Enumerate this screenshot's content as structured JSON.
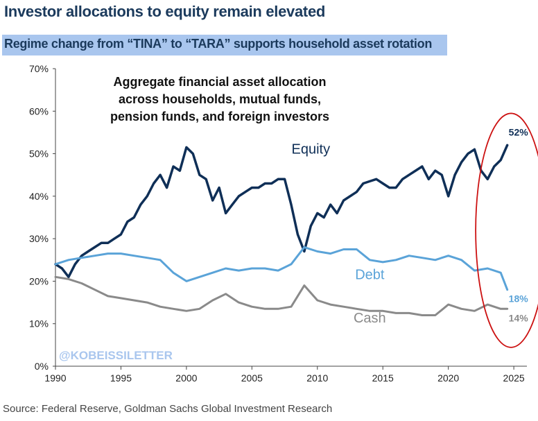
{
  "header": {
    "title": "Investor allocations to equity remain elevated",
    "subtitle": "Regime change from “TINA” to “TARA” supports household asset rotation"
  },
  "source": "Source: Federal Reserve, Goldman Sachs Global Investment Research",
  "chart_data": {
    "type": "line",
    "title": "Aggregate financial asset allocation across households, mutual funds, pension funds, and foreign investors",
    "title_lines": [
      "Aggregate financial asset allocation",
      "across households, mutual funds,",
      "pension funds, and foreign investors"
    ],
    "watermark": "@KOBEISSILETTER",
    "xlim": [
      1990,
      2026
    ],
    "ylim": [
      0,
      70
    ],
    "x_ticks": [
      1990,
      1995,
      2000,
      2005,
      2010,
      2015,
      2020,
      2025
    ],
    "x_tick_labels": [
      "1990",
      "1995",
      "2000",
      "2005",
      "2010",
      "2015",
      "2020",
      "2025"
    ],
    "y_ticks": [
      0,
      10,
      20,
      30,
      40,
      50,
      60,
      70
    ],
    "y_tick_labels": [
      "0%",
      "10%",
      "20%",
      "30%",
      "40%",
      "50%",
      "60%",
      "70%"
    ],
    "series": [
      {
        "name": "Equity",
        "color": "#0f2f57",
        "end_label": "52%",
        "points": [
          [
            1990,
            24
          ],
          [
            1990.5,
            23
          ],
          [
            1991,
            21
          ],
          [
            1991.5,
            24
          ],
          [
            1992,
            26
          ],
          [
            1992.5,
            27
          ],
          [
            1993,
            28
          ],
          [
            1993.5,
            29
          ],
          [
            1994,
            29
          ],
          [
            1994.5,
            30
          ],
          [
            1995,
            31
          ],
          [
            1995.5,
            34
          ],
          [
            1996,
            35
          ],
          [
            1996.5,
            38
          ],
          [
            1997,
            40
          ],
          [
            1997.5,
            43
          ],
          [
            1998,
            45
          ],
          [
            1998.5,
            42
          ],
          [
            1999,
            47
          ],
          [
            1999.5,
            46
          ],
          [
            2000,
            51.5
          ],
          [
            2000.5,
            50
          ],
          [
            2001,
            45
          ],
          [
            2001.5,
            44
          ],
          [
            2002,
            39
          ],
          [
            2002.5,
            42
          ],
          [
            2003,
            36
          ],
          [
            2003.5,
            38
          ],
          [
            2004,
            40
          ],
          [
            2004.5,
            41
          ],
          [
            2005,
            42
          ],
          [
            2005.5,
            42
          ],
          [
            2006,
            43
          ],
          [
            2006.5,
            43
          ],
          [
            2007,
            44
          ],
          [
            2007.5,
            44
          ],
          [
            2008,
            38
          ],
          [
            2008.5,
            31
          ],
          [
            2009,
            27
          ],
          [
            2009.5,
            33
          ],
          [
            2010,
            36
          ],
          [
            2010.5,
            35
          ],
          [
            2011,
            38
          ],
          [
            2011.5,
            36
          ],
          [
            2012,
            39
          ],
          [
            2012.5,
            40
          ],
          [
            2013,
            41
          ],
          [
            2013.5,
            43
          ],
          [
            2014,
            43.5
          ],
          [
            2014.5,
            44
          ],
          [
            2015,
            43
          ],
          [
            2015.5,
            42
          ],
          [
            2016,
            42
          ],
          [
            2016.5,
            44
          ],
          [
            2017,
            45
          ],
          [
            2017.5,
            46
          ],
          [
            2018,
            47
          ],
          [
            2018.5,
            44
          ],
          [
            2019,
            46
          ],
          [
            2019.5,
            45
          ],
          [
            2020,
            40
          ],
          [
            2020.5,
            45
          ],
          [
            2021,
            48
          ],
          [
            2021.5,
            50
          ],
          [
            2022,
            51
          ],
          [
            2022.5,
            46
          ],
          [
            2023,
            44
          ],
          [
            2023.5,
            47
          ],
          [
            2024,
            48.5
          ],
          [
            2024.5,
            52
          ]
        ]
      },
      {
        "name": "Debt",
        "color": "#5aa3d8",
        "end_label": "18%",
        "points": [
          [
            1990,
            24
          ],
          [
            1991,
            25
          ],
          [
            1992,
            25.5
          ],
          [
            1993,
            26
          ],
          [
            1994,
            26.5
          ],
          [
            1995,
            26.5
          ],
          [
            1996,
            26
          ],
          [
            1997,
            25.5
          ],
          [
            1998,
            25
          ],
          [
            1999,
            22
          ],
          [
            2000,
            20
          ],
          [
            2001,
            21
          ],
          [
            2002,
            22
          ],
          [
            2003,
            23
          ],
          [
            2004,
            22.5
          ],
          [
            2005,
            23
          ],
          [
            2006,
            23
          ],
          [
            2007,
            22.5
          ],
          [
            2008,
            24
          ],
          [
            2009,
            28
          ],
          [
            2010,
            27
          ],
          [
            2011,
            26.5
          ],
          [
            2012,
            27.5
          ],
          [
            2013,
            27.5
          ],
          [
            2014,
            25
          ],
          [
            2015,
            24.5
          ],
          [
            2016,
            25
          ],
          [
            2017,
            26
          ],
          [
            2018,
            25.5
          ],
          [
            2019,
            25
          ],
          [
            2020,
            26
          ],
          [
            2021,
            25
          ],
          [
            2022,
            22.5
          ],
          [
            2023,
            23
          ],
          [
            2024,
            22
          ],
          [
            2024.5,
            18
          ]
        ]
      },
      {
        "name": "Cash",
        "color": "#8a8a8a",
        "end_label": "14%",
        "points": [
          [
            1990,
            21
          ],
          [
            1991,
            20.5
          ],
          [
            1992,
            19.5
          ],
          [
            1993,
            18
          ],
          [
            1994,
            16.5
          ],
          [
            1995,
            16
          ],
          [
            1996,
            15.5
          ],
          [
            1997,
            15
          ],
          [
            1998,
            14
          ],
          [
            1999,
            13.5
          ],
          [
            2000,
            13
          ],
          [
            2001,
            13.5
          ],
          [
            2002,
            15.5
          ],
          [
            2003,
            17
          ],
          [
            2004,
            15
          ],
          [
            2005,
            14
          ],
          [
            2006,
            13.5
          ],
          [
            2007,
            13.5
          ],
          [
            2008,
            14
          ],
          [
            2009,
            19
          ],
          [
            2010,
            15.5
          ],
          [
            2011,
            14.5
          ],
          [
            2012,
            14
          ],
          [
            2013,
            13.5
          ],
          [
            2014,
            13
          ],
          [
            2015,
            13
          ],
          [
            2016,
            12.5
          ],
          [
            2017,
            12.5
          ],
          [
            2018,
            12
          ],
          [
            2019,
            12
          ],
          [
            2020,
            14.5
          ],
          [
            2021,
            13.5
          ],
          [
            2022,
            13
          ],
          [
            2023,
            14.5
          ],
          [
            2024,
            13.5
          ],
          [
            2024.5,
            13.5
          ]
        ]
      }
    ],
    "series_labels": [
      {
        "name": "Equity",
        "x": 2009.5,
        "y": 50
      },
      {
        "name": "Debt",
        "x": 2014,
        "y": 20.5
      },
      {
        "name": "Cash",
        "x": 2014,
        "y": 10.3
      }
    ],
    "annotation": {
      "type": "ellipse",
      "color": "#cc1111",
      "cx": 2025,
      "cy": 30,
      "rx_years": 2.7,
      "ry": 42
    }
  }
}
